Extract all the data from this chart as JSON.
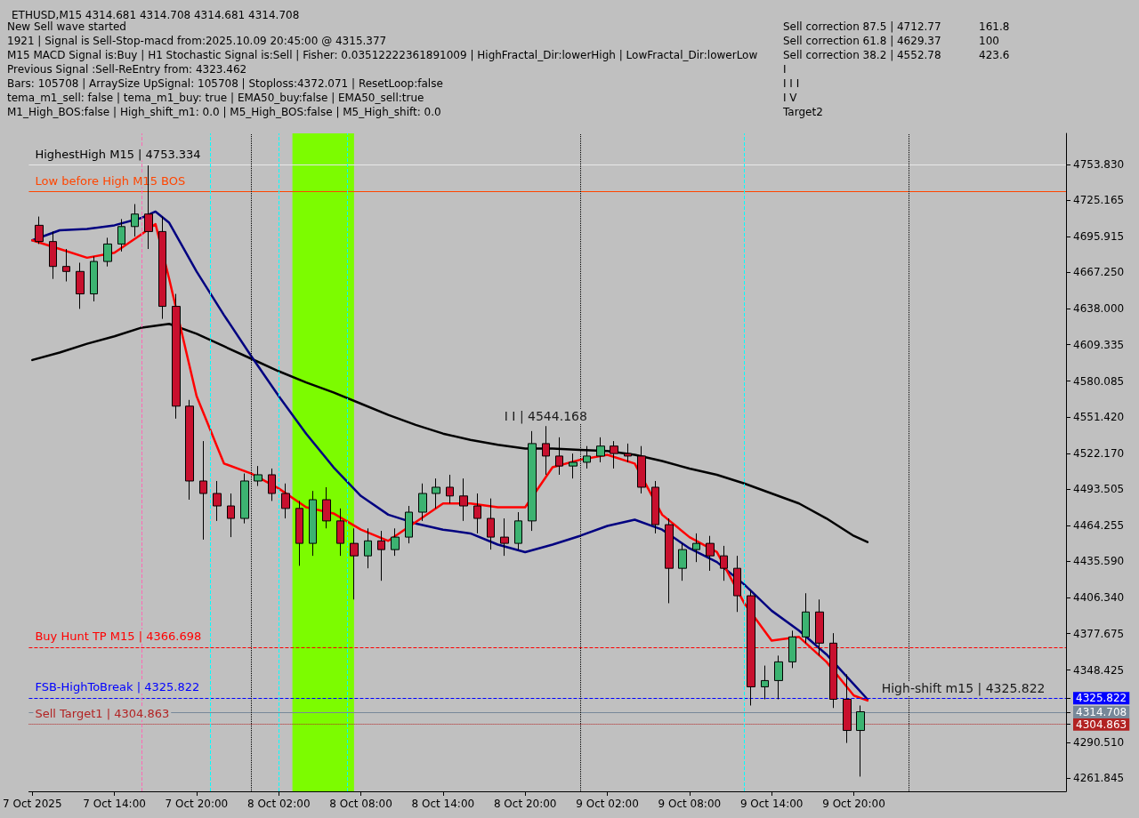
{
  "chart_data": {
    "type": "candlestick",
    "title": "ETHUSD,M15 4314.681 4314.708 4314.681 4314.708",
    "annotations": [
      "New Sell wave started",
      "1921 | Signal is Sell-Stop-macd from:2025.10.09 20:45:00 @ 4315.377",
      "M15 MACD Signal is:Buy | H1 Stochastic Signal is:Sell | Fisher: 0.03512222361891009 | HighFractal_Dir:lowerHigh | LowFractal_Dir:lowerLow",
      "Previous Signal :Sell-ReEntry from: 4323.462",
      "Bars: 105708 | ArraySize UpSignal: 105708 | Stoploss:4372.071 | ResetLoop:false",
      "tema_m1_sell: false | tema_m1_buy: true | EMA50_buy:false | EMA50_sell:true",
      "M1_High_BOS:false | High_shift_m1: 0.0 | M5_High_BOS:false | M5_High_shift: 0.0",
      "Sell correction 87.5 | 4712.77",
      "Sell correction 61.8 | 4629.37",
      "Sell correction 38.2 | 4552.78",
      "I",
      "I I I",
      "I V",
      "Target2",
      "161.8",
      "100",
      "423.6",
      {
        "text": "I I | 4544.168",
        "x": "2025-10-08T21:30",
        "y": 4544
      },
      {
        "text": "High-shift m15 | 4325.822",
        "x": "2025-10-10T04:00",
        "y": 4325.822
      }
    ],
    "x": [
      "2025-10-07T08:30",
      "2025-10-07T09:30",
      "2025-10-07T10:30",
      "2025-10-07T11:30",
      "2025-10-07T12:30",
      "2025-10-07T13:30",
      "2025-10-07T14:30",
      "2025-10-07T15:30",
      "2025-10-07T16:30",
      "2025-10-07T17:30",
      "2025-10-07T18:30",
      "2025-10-07T19:30",
      "2025-10-07T20:30",
      "2025-10-07T21:30",
      "2025-10-07T22:30",
      "2025-10-07T23:30",
      "2025-10-08T00:30",
      "2025-10-08T01:30",
      "2025-10-08T02:30",
      "2025-10-08T03:30",
      "2025-10-08T04:30",
      "2025-10-08T05:30",
      "2025-10-08T06:30",
      "2025-10-08T07:30",
      "2025-10-08T08:30",
      "2025-10-08T09:30",
      "2025-10-08T10:30",
      "2025-10-08T11:30",
      "2025-10-08T12:30",
      "2025-10-08T13:30",
      "2025-10-08T14:30",
      "2025-10-08T15:30",
      "2025-10-08T16:30",
      "2025-10-08T17:30",
      "2025-10-08T18:30",
      "2025-10-08T19:30",
      "2025-10-08T20:30",
      "2025-10-08T21:30",
      "2025-10-08T22:30",
      "2025-10-08T23:30",
      "2025-10-09T00:30",
      "2025-10-09T01:30",
      "2025-10-09T02:30",
      "2025-10-09T03:30",
      "2025-10-09T04:30",
      "2025-10-09T05:30",
      "2025-10-09T06:30",
      "2025-10-09T07:30",
      "2025-10-09T08:30",
      "2025-10-09T09:30",
      "2025-10-09T10:30",
      "2025-10-09T11:30",
      "2025-10-09T12:30",
      "2025-10-09T13:30",
      "2025-10-09T14:30",
      "2025-10-09T15:30",
      "2025-10-09T16:30",
      "2025-10-09T17:30",
      "2025-10-09T18:30",
      "2025-10-09T19:30",
      "2025-10-09T20:30"
    ],
    "ohlc": [
      [
        4705,
        4712,
        4690,
        4692
      ],
      [
        4692,
        4700,
        4662,
        4672
      ],
      [
        4672,
        4686,
        4660,
        4668
      ],
      [
        4668,
        4675,
        4638,
        4650
      ],
      [
        4650,
        4680,
        4644,
        4676
      ],
      [
        4676,
        4695,
        4672,
        4690
      ],
      [
        4690,
        4710,
        4684,
        4704
      ],
      [
        4704,
        4722,
        4696,
        4714
      ],
      [
        4714,
        4753,
        4686,
        4700
      ],
      [
        4700,
        4712,
        4630,
        4640
      ],
      [
        4640,
        4650,
        4550,
        4560
      ],
      [
        4560,
        4565,
        4485,
        4500
      ],
      [
        4500,
        4532,
        4453,
        4490
      ],
      [
        4490,
        4500,
        4468,
        4480
      ],
      [
        4480,
        4490,
        4455,
        4470
      ],
      [
        4470,
        4506,
        4466,
        4500
      ],
      [
        4500,
        4512,
        4496,
        4505
      ],
      [
        4505,
        4510,
        4484,
        4490
      ],
      [
        4490,
        4498,
        4470,
        4478
      ],
      [
        4478,
        4484,
        4432,
        4450
      ],
      [
        4450,
        4492,
        4440,
        4485
      ],
      [
        4485,
        4495,
        4462,
        4468
      ],
      [
        4468,
        4478,
        4440,
        4450
      ],
      [
        4450,
        4462,
        4405,
        4440
      ],
      [
        4440,
        4462,
        4430,
        4452
      ],
      [
        4452,
        4460,
        4420,
        4445
      ],
      [
        4445,
        4462,
        4440,
        4455
      ],
      [
        4455,
        4480,
        4450,
        4475
      ],
      [
        4475,
        4498,
        4468,
        4490
      ],
      [
        4490,
        4502,
        4478,
        4495
      ],
      [
        4495,
        4505,
        4482,
        4488
      ],
      [
        4488,
        4502,
        4468,
        4480
      ],
      [
        4480,
        4490,
        4458,
        4470
      ],
      [
        4470,
        4486,
        4445,
        4455
      ],
      [
        4455,
        4470,
        4440,
        4450
      ],
      [
        4450,
        4475,
        4445,
        4468
      ],
      [
        4468,
        4540,
        4460,
        4530
      ],
      [
        4530,
        4544,
        4505,
        4520
      ],
      [
        4520,
        4535,
        4505,
        4512
      ],
      [
        4512,
        4522,
        4502,
        4515
      ],
      [
        4515,
        4528,
        4510,
        4520
      ],
      [
        4520,
        4535,
        4515,
        4528
      ],
      [
        4528,
        4532,
        4510,
        4522
      ],
      [
        4522,
        4530,
        4515,
        4520
      ],
      [
        4520,
        4528,
        4490,
        4495
      ],
      [
        4495,
        4500,
        4458,
        4465
      ],
      [
        4465,
        4470,
        4402,
        4430
      ],
      [
        4430,
        4450,
        4420,
        4445
      ],
      [
        4445,
        4458,
        4435,
        4450
      ],
      [
        4450,
        4456,
        4428,
        4440
      ],
      [
        4440,
        4448,
        4420,
        4430
      ],
      [
        4430,
        4440,
        4395,
        4408
      ],
      [
        4408,
        4412,
        4320,
        4335
      ],
      [
        4335,
        4352,
        4325,
        4340
      ],
      [
        4340,
        4360,
        4325,
        4355
      ],
      [
        4355,
        4380,
        4350,
        4375
      ],
      [
        4375,
        4410,
        4370,
        4395
      ],
      [
        4395,
        4405,
        4360,
        4370
      ],
      [
        4370,
        4378,
        4318,
        4325
      ],
      [
        4325,
        4345,
        4290,
        4300
      ],
      [
        4300,
        4320,
        4263,
        4315
      ]
    ],
    "series": [
      {
        "type": "line",
        "color": "#000000",
        "x": [
          "2025-10-07T08:00",
          "2025-10-07T10:00",
          "2025-10-07T12:00",
          "2025-10-07T14:00",
          "2025-10-07T16:00",
          "2025-10-07T18:00",
          "2025-10-07T20:00",
          "2025-10-07T22:00",
          "2025-10-08T00:00",
          "2025-10-08T02:00",
          "2025-10-08T04:00",
          "2025-10-08T06:00",
          "2025-10-08T08:00",
          "2025-10-08T10:00",
          "2025-10-08T12:00",
          "2025-10-08T14:00",
          "2025-10-08T16:00",
          "2025-10-08T18:00",
          "2025-10-08T20:00",
          "2025-10-08T22:00",
          "2025-10-09T00:00",
          "2025-10-09T02:00",
          "2025-10-09T04:00",
          "2025-10-09T06:00",
          "2025-10-09T08:00",
          "2025-10-09T10:00",
          "2025-10-09T12:00",
          "2025-10-09T14:00",
          "2025-10-09T16:00",
          "2025-10-09T18:00",
          "2025-10-09T20:00",
          "2025-10-09T21:00"
        ],
        "values": [
          4597,
          4603,
          4610,
          4616,
          4623,
          4626,
          4618,
          4608,
          4598,
          4588,
          4579,
          4571,
          4562,
          4553,
          4545,
          4538,
          4533,
          4529,
          4526,
          4526,
          4525,
          4524,
          4521,
          4516,
          4510,
          4505,
          4498,
          4490,
          4482,
          4470,
          4456,
          4451
        ]
      },
      {
        "type": "line",
        "color": "#000080",
        "x": [
          "2025-10-07T08:00",
          "2025-10-07T10:00",
          "2025-10-07T12:00",
          "2025-10-07T14:00",
          "2025-10-07T16:00",
          "2025-10-07T17:00",
          "2025-10-07T18:00",
          "2025-10-07T20:00",
          "2025-10-07T22:00",
          "2025-10-08T00:00",
          "2025-10-08T02:00",
          "2025-10-08T04:00",
          "2025-10-08T06:00",
          "2025-10-08T08:00",
          "2025-10-08T10:00",
          "2025-10-08T12:00",
          "2025-10-08T14:00",
          "2025-10-08T16:00",
          "2025-10-08T18:00",
          "2025-10-08T20:00",
          "2025-10-08T22:00",
          "2025-10-09T00:00",
          "2025-10-09T02:00",
          "2025-10-09T04:00",
          "2025-10-09T06:00",
          "2025-10-09T08:00",
          "2025-10-09T10:00",
          "2025-10-09T12:00",
          "2025-10-09T14:00",
          "2025-10-09T16:00",
          "2025-10-09T18:00",
          "2025-10-09T20:00",
          "2025-10-09T21:00"
        ],
        "values": [
          4693,
          4701,
          4702,
          4705,
          4711,
          4716,
          4707,
          4668,
          4633,
          4600,
          4568,
          4538,
          4511,
          4488,
          4473,
          4466,
          4461,
          4458,
          4449,
          4443,
          4449,
          4456,
          4464,
          4469,
          4461,
          4446,
          4435,
          4417,
          4396,
          4380,
          4361,
          4337,
          4325
        ]
      },
      {
        "type": "line",
        "color": "#ff0000",
        "x": [
          "2025-10-07T08:00",
          "2025-10-07T10:00",
          "2025-10-07T12:00",
          "2025-10-07T14:00",
          "2025-10-07T16:00",
          "2025-10-07T17:00",
          "2025-10-07T18:00",
          "2025-10-07T20:00",
          "2025-10-07T22:00",
          "2025-10-08T00:00",
          "2025-10-08T02:00",
          "2025-10-08T04:00",
          "2025-10-08T06:00",
          "2025-10-08T08:00",
          "2025-10-08T10:00",
          "2025-10-08T12:00",
          "2025-10-08T14:00",
          "2025-10-08T16:00",
          "2025-10-08T18:00",
          "2025-10-08T20:00",
          "2025-10-08T22:00",
          "2025-10-09T00:00",
          "2025-10-09T02:00",
          "2025-10-09T04:00",
          "2025-10-09T06:00",
          "2025-10-09T08:00",
          "2025-10-09T10:00",
          "2025-10-09T12:00",
          "2025-10-09T14:00",
          "2025-10-09T16:00",
          "2025-10-09T18:00",
          "2025-10-09T20:00",
          "2025-10-09T21:00"
        ],
        "values": [
          4693,
          4686,
          4679,
          4683,
          4698,
          4706,
          4662,
          4568,
          4514,
          4506,
          4494,
          4479,
          4474,
          4461,
          4452,
          4467,
          4482,
          4482,
          4479,
          4479,
          4511,
          4517,
          4521,
          4514,
          4473,
          4455,
          4443,
          4402,
          4372,
          4375,
          4355,
          4328,
          4324
        ]
      }
    ],
    "xlim": [
      "2025-10-07T07:45",
      "2025-10-10T11:30"
    ],
    "xticks": [
      {
        "value": "2025-10-07T08:00",
        "label": "7 Oct 2025"
      },
      {
        "value": "2025-10-07T14:00",
        "label": "7 Oct 14:00"
      },
      {
        "value": "2025-10-07T20:00",
        "label": "7 Oct 20:00"
      },
      {
        "value": "2025-10-08T02:00",
        "label": "8 Oct 02:00"
      },
      {
        "value": "2025-10-08T08:00",
        "label": "8 Oct 08:00"
      },
      {
        "value": "2025-10-08T14:00",
        "label": "8 Oct 14:00"
      },
      {
        "value": "2025-10-08T20:00",
        "label": "8 Oct 20:00"
      },
      {
        "value": "2025-10-09T02:00",
        "label": "9 Oct 02:00"
      },
      {
        "value": "2025-10-09T08:00",
        "label": "9 Oct 08:00"
      },
      {
        "value": "2025-10-09T14:00",
        "label": "9 Oct 14:00"
      },
      {
        "value": "2025-10-09T20:00",
        "label": "9 Oct 20:00"
      }
    ],
    "ylim": [
      4251.2,
      4778.7
    ],
    "yticks": [
      {
        "value": 4261.845,
        "label": "4261.845"
      },
      {
        "value": 4290.51,
        "label": "4290.510"
      },
      {
        "value": 4304.863,
        "label": "4304.863"
      },
      {
        "value": 4314.708,
        "label": "4314.708"
      },
      {
        "value": 4325.822,
        "label": "4325.822"
      },
      {
        "value": 4348.425,
        "label": "4348.425"
      },
      {
        "value": 4377.675,
        "label": "4377.675"
      },
      {
        "value": 4406.34,
        "label": "4406.340"
      },
      {
        "value": 4435.59,
        "label": "4435.590"
      },
      {
        "value": 4464.255,
        "label": "4464.255"
      },
      {
        "value": 4493.505,
        "label": "4493.505"
      },
      {
        "value": 4522.17,
        "label": "4522.170"
      },
      {
        "value": 4551.42,
        "label": "4551.420"
      },
      {
        "value": 4580.085,
        "label": "4580.085"
      },
      {
        "value": 4609.335,
        "label": "4609.335"
      },
      {
        "value": 4638,
        "label": "4638.000"
      },
      {
        "value": 4667.25,
        "label": "4667.250"
      },
      {
        "value": 4695.915,
        "label": "4695.915"
      },
      {
        "value": 4725.165,
        "label": "4725.165"
      },
      {
        "value": 4753.83,
        "label": "4753.830"
      }
    ],
    "ref_lines": [
      {
        "axis": "y",
        "value": 4753.334,
        "label": "HighestHigh M15 | 4753.334",
        "color": "#e8e8e8",
        "line_style": "solid"
      },
      {
        "axis": "y",
        "value": 4732,
        "label": "Low before High M15 BOS",
        "color": "#ff4500",
        "line_style": "solid"
      },
      {
        "axis": "y",
        "value": 4366.698,
        "label": "Buy Hunt TP M15 | 4366.698",
        "color": "#ff0000",
        "line_style": "dashed"
      },
      {
        "axis": "y",
        "value": 4325.822,
        "label": "FSB-HighToBreak | 4325.822",
        "color": "#0000ff",
        "line_style": "dashed"
      },
      {
        "axis": "y",
        "value": 4314.708,
        "color": "#778899",
        "line_style": "solid"
      },
      {
        "axis": "y",
        "value": 4304.863,
        "label": "Sell Target1 | 4304.863",
        "color": "#b22222",
        "line_style": "dotted"
      },
      {
        "axis": "x",
        "value": "2025-10-07T16:00",
        "color": "#ff69b4",
        "line_style": "dashed"
      },
      {
        "axis": "x",
        "value": "2025-10-07T21:00",
        "color": "#00ffff",
        "line_style": "dashed"
      },
      {
        "axis": "x",
        "value": "2025-10-08T00:00",
        "color": "#000000",
        "line_style": "dotted"
      },
      {
        "axis": "x",
        "value": "2025-10-08T02:00",
        "color": "#00ffff",
        "line_style": "dashed"
      },
      {
        "axis": "x",
        "value": "2025-10-08T07:00",
        "color": "#00ffff",
        "line_style": "dashed"
      },
      {
        "axis": "x",
        "value": "2025-10-09T00:00",
        "color": "#000000",
        "line_style": "dotted"
      },
      {
        "axis": "x",
        "value": "2025-10-09T12:00",
        "color": "#00ffff",
        "line_style": "dashed"
      },
      {
        "axis": "x",
        "value": "2025-10-10T00:00",
        "color": "#000000",
        "line_style": "dotted"
      }
    ],
    "bands": [
      {
        "axis": "x",
        "from": "2025-10-08T03:00",
        "to": "2025-10-08T07:30",
        "color": "#7cfc00"
      }
    ]
  }
}
